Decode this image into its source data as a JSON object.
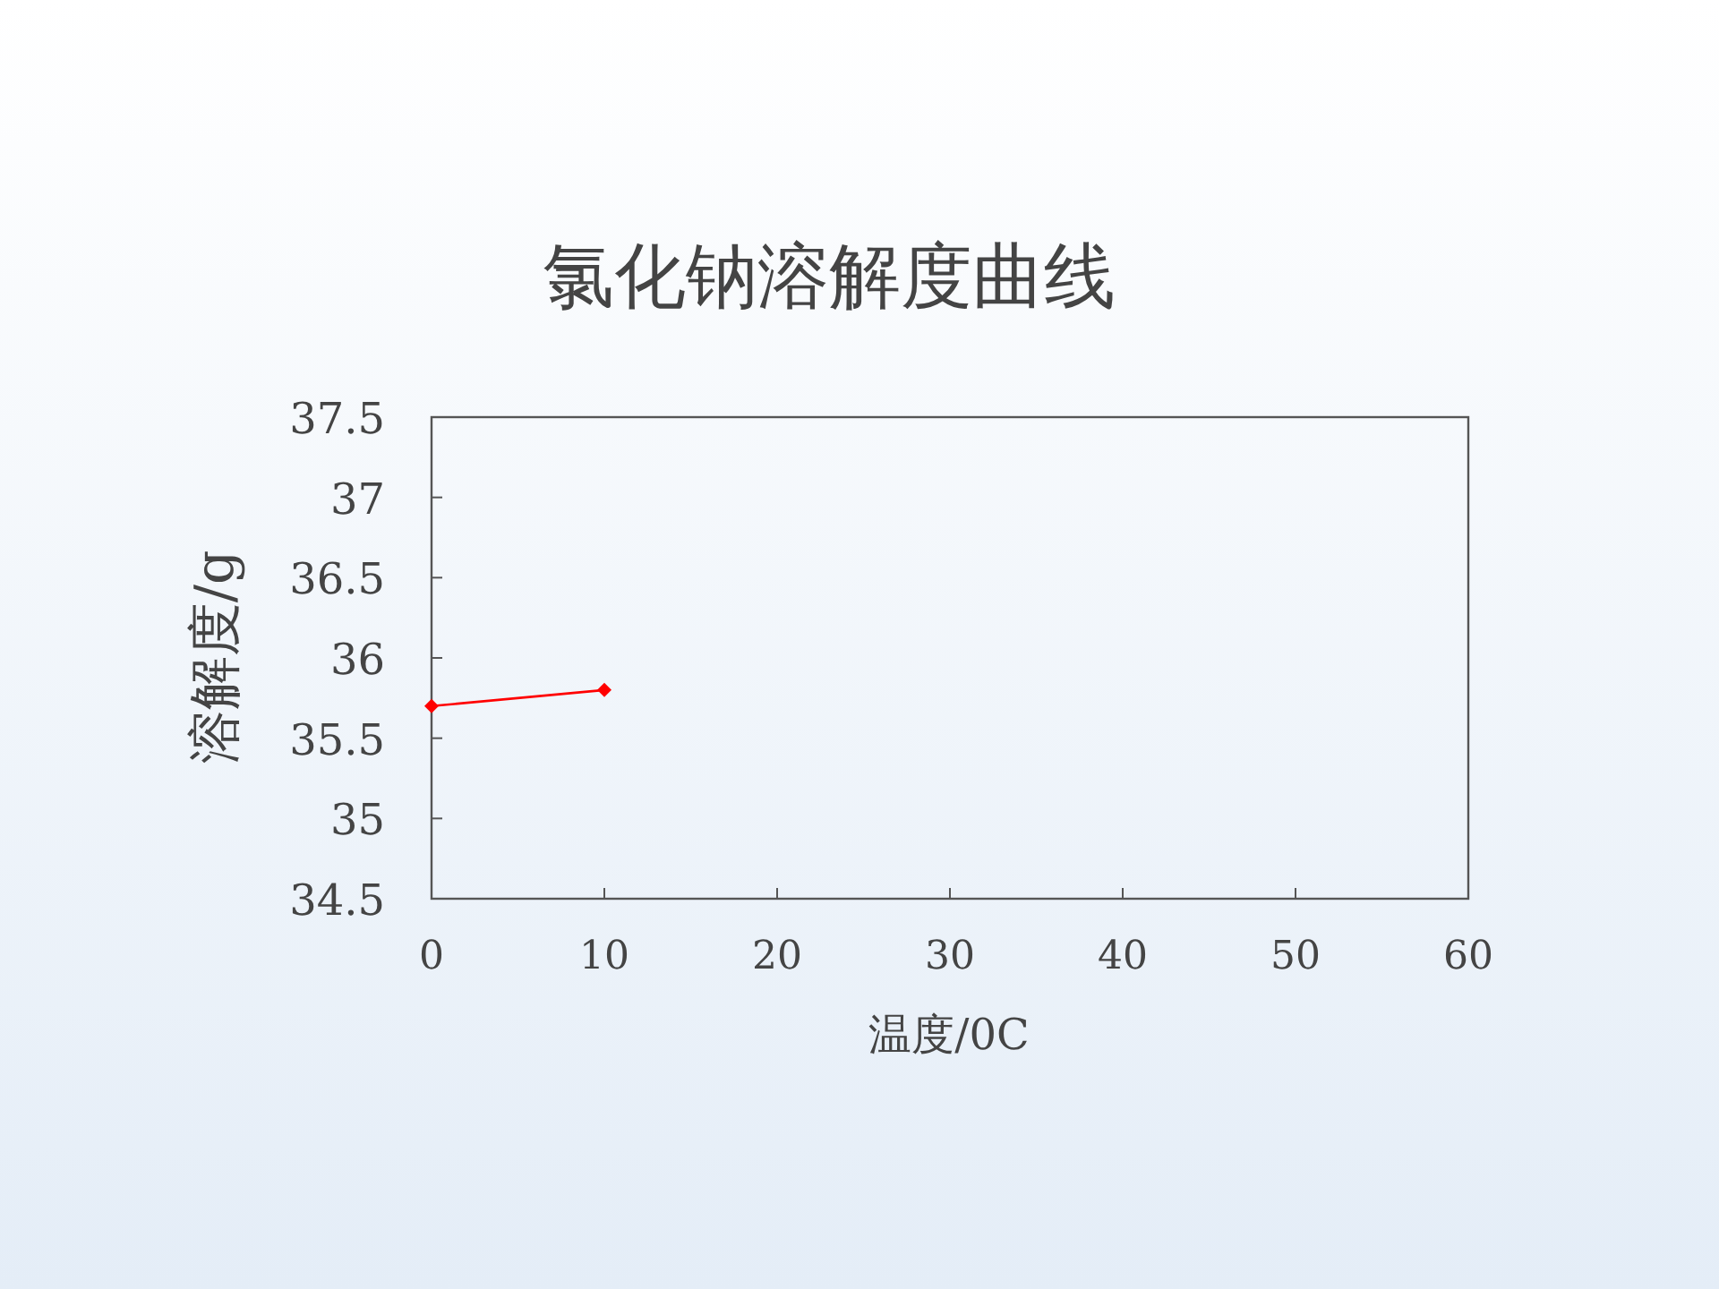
{
  "chart_data": {
    "type": "line",
    "title": "氯化钠溶解度曲线",
    "xlabel": "温度/0C",
    "ylabel": "溶解度/g",
    "x": [
      0,
      10
    ],
    "series": [
      {
        "color": "#ff0000",
        "values": [
          35.7,
          35.8
        ]
      }
    ],
    "xlim": [
      0,
      60
    ],
    "xticks": [
      0,
      10,
      20,
      30,
      40,
      50,
      60
    ],
    "ylim": [
      34.5,
      37.5
    ],
    "yticks": [
      {
        "value": 34.5,
        "label": "34.5"
      },
      35,
      {
        "value": 35.5,
        "label": "35.5"
      },
      36,
      {
        "value": 36.5,
        "label": "36.5"
      },
      37,
      {
        "value": 37.5,
        "label": "37.5"
      }
    ],
    "marker": "diamond",
    "line_style": "solid",
    "grid": false
  }
}
